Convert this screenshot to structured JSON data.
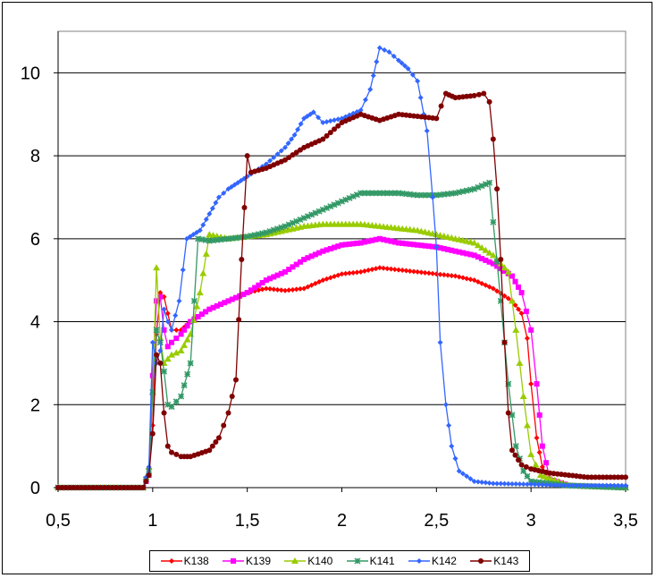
{
  "chart_data": {
    "type": "line",
    "title": "",
    "xlabel": "",
    "ylabel": "",
    "xlim": [
      0.5,
      3.5
    ],
    "ylim": [
      0,
      11
    ],
    "x_ticks": [
      "0,5",
      "1",
      "1,5",
      "2",
      "2,5",
      "3",
      "3,5"
    ],
    "y_ticks": [
      "0",
      "2",
      "4",
      "6",
      "8",
      "10"
    ],
    "grid": "horizontal",
    "legend_position": "bottom",
    "series": [
      {
        "name": "K138",
        "color": "#ff0000",
        "marker": "diamond",
        "points": [
          [
            0.5,
            0
          ],
          [
            0.95,
            0
          ],
          [
            0.98,
            0.3
          ],
          [
            1.0,
            1.5
          ],
          [
            1.02,
            3.7
          ],
          [
            1.04,
            4.7
          ],
          [
            1.06,
            4.6
          ],
          [
            1.08,
            4.2
          ],
          [
            1.1,
            3.8
          ],
          [
            1.15,
            3.8
          ],
          [
            1.2,
            4.0
          ],
          [
            1.3,
            4.3
          ],
          [
            1.4,
            4.5
          ],
          [
            1.5,
            4.7
          ],
          [
            1.6,
            4.8
          ],
          [
            1.7,
            4.75
          ],
          [
            1.8,
            4.8
          ],
          [
            1.9,
            5.0
          ],
          [
            2.0,
            5.15
          ],
          [
            2.1,
            5.2
          ],
          [
            2.2,
            5.3
          ],
          [
            2.3,
            5.25
          ],
          [
            2.4,
            5.2
          ],
          [
            2.5,
            5.15
          ],
          [
            2.6,
            5.1
          ],
          [
            2.7,
            5.0
          ],
          [
            2.8,
            4.8
          ],
          [
            2.9,
            4.5
          ],
          [
            2.95,
            4.2
          ],
          [
            2.98,
            3.6
          ],
          [
            3.0,
            2.5
          ],
          [
            3.03,
            1.2
          ],
          [
            3.06,
            0.5
          ],
          [
            3.1,
            0.2
          ],
          [
            3.2,
            0.05
          ],
          [
            3.5,
            0
          ]
        ]
      },
      {
        "name": "K139",
        "color": "#ff00ff",
        "marker": "square",
        "points": [
          [
            0.5,
            0
          ],
          [
            0.95,
            0
          ],
          [
            0.98,
            0.3
          ],
          [
            1.0,
            2.7
          ],
          [
            1.02,
            4.5
          ],
          [
            1.04,
            4.6
          ],
          [
            1.06,
            3.8
          ],
          [
            1.08,
            3.4
          ],
          [
            1.1,
            3.5
          ],
          [
            1.15,
            3.7
          ],
          [
            1.2,
            4.0
          ],
          [
            1.3,
            4.3
          ],
          [
            1.4,
            4.5
          ],
          [
            1.5,
            4.7
          ],
          [
            1.6,
            5.0
          ],
          [
            1.7,
            5.2
          ],
          [
            1.8,
            5.5
          ],
          [
            1.9,
            5.7
          ],
          [
            2.0,
            5.85
          ],
          [
            2.1,
            5.9
          ],
          [
            2.2,
            6.0
          ],
          [
            2.3,
            5.9
          ],
          [
            2.4,
            5.85
          ],
          [
            2.5,
            5.8
          ],
          [
            2.6,
            5.7
          ],
          [
            2.7,
            5.6
          ],
          [
            2.8,
            5.4
          ],
          [
            2.9,
            5.1
          ],
          [
            2.95,
            4.7
          ],
          [
            3.0,
            3.8
          ],
          [
            3.03,
            2.5
          ],
          [
            3.06,
            1.0
          ],
          [
            3.1,
            0.2
          ],
          [
            3.2,
            0.05
          ],
          [
            3.5,
            0
          ]
        ]
      },
      {
        "name": "K140",
        "color": "#99cc00",
        "marker": "triangle",
        "points": [
          [
            0.5,
            0
          ],
          [
            0.95,
            0
          ],
          [
            0.98,
            0.5
          ],
          [
            1.0,
            2.3
          ],
          [
            1.02,
            5.3
          ],
          [
            1.04,
            3.6
          ],
          [
            1.06,
            3.0
          ],
          [
            1.1,
            3.2
          ],
          [
            1.15,
            3.3
          ],
          [
            1.2,
            3.7
          ],
          [
            1.25,
            4.7
          ],
          [
            1.3,
            6.1
          ],
          [
            1.4,
            6.0
          ],
          [
            1.5,
            6.05
          ],
          [
            1.6,
            6.1
          ],
          [
            1.7,
            6.2
          ],
          [
            1.8,
            6.3
          ],
          [
            1.9,
            6.35
          ],
          [
            2.0,
            6.35
          ],
          [
            2.1,
            6.35
          ],
          [
            2.2,
            6.3
          ],
          [
            2.3,
            6.25
          ],
          [
            2.4,
            6.2
          ],
          [
            2.5,
            6.1
          ],
          [
            2.6,
            6.0
          ],
          [
            2.7,
            5.9
          ],
          [
            2.8,
            5.6
          ],
          [
            2.88,
            5.2
          ],
          [
            2.92,
            3.8
          ],
          [
            2.96,
            2.2
          ],
          [
            3.0,
            0.8
          ],
          [
            3.05,
            0.3
          ],
          [
            3.2,
            0.05
          ],
          [
            3.5,
            0
          ]
        ]
      },
      {
        "name": "K141",
        "color": "#339966",
        "marker": "asterisk",
        "points": [
          [
            0.5,
            0
          ],
          [
            0.95,
            0
          ],
          [
            0.98,
            0.4
          ],
          [
            1.0,
            2.3
          ],
          [
            1.02,
            3.8
          ],
          [
            1.04,
            3.5
          ],
          [
            1.06,
            2.8
          ],
          [
            1.08,
            2.0
          ],
          [
            1.1,
            1.95
          ],
          [
            1.15,
            2.2
          ],
          [
            1.2,
            3.0
          ],
          [
            1.24,
            6.0
          ],
          [
            1.3,
            5.95
          ],
          [
            1.4,
            6.0
          ],
          [
            1.5,
            6.05
          ],
          [
            1.6,
            6.15
          ],
          [
            1.7,
            6.3
          ],
          [
            1.8,
            6.5
          ],
          [
            1.9,
            6.7
          ],
          [
            2.0,
            6.9
          ],
          [
            2.1,
            7.1
          ],
          [
            2.2,
            7.1
          ],
          [
            2.3,
            7.1
          ],
          [
            2.4,
            7.05
          ],
          [
            2.5,
            7.05
          ],
          [
            2.6,
            7.1
          ],
          [
            2.7,
            7.2
          ],
          [
            2.78,
            7.35
          ],
          [
            2.8,
            6.4
          ],
          [
            2.84,
            4.5
          ],
          [
            2.88,
            2.5
          ],
          [
            2.92,
            1.0
          ],
          [
            2.96,
            0.4
          ],
          [
            3.0,
            0.15
          ],
          [
            3.2,
            0.05
          ],
          [
            3.5,
            0
          ]
        ]
      },
      {
        "name": "K142",
        "color": "#3366ff",
        "marker": "diamond",
        "points": [
          [
            0.5,
            0
          ],
          [
            0.95,
            0
          ],
          [
            0.98,
            0.5
          ],
          [
            1.0,
            3.5
          ],
          [
            1.02,
            3.0
          ],
          [
            1.04,
            3.3
          ],
          [
            1.06,
            4.3
          ],
          [
            1.08,
            4.0
          ],
          [
            1.1,
            3.8
          ],
          [
            1.14,
            4.5
          ],
          [
            1.18,
            6.0
          ],
          [
            1.25,
            6.2
          ],
          [
            1.3,
            6.6
          ],
          [
            1.35,
            7.0
          ],
          [
            1.4,
            7.2
          ],
          [
            1.45,
            7.35
          ],
          [
            1.5,
            7.5
          ],
          [
            1.6,
            7.8
          ],
          [
            1.7,
            8.2
          ],
          [
            1.75,
            8.5
          ],
          [
            1.8,
            8.9
          ],
          [
            1.85,
            9.05
          ],
          [
            1.9,
            8.8
          ],
          [
            2.0,
            8.9
          ],
          [
            2.1,
            9.1
          ],
          [
            2.15,
            9.6
          ],
          [
            2.2,
            10.6
          ],
          [
            2.25,
            10.5
          ],
          [
            2.3,
            10.3
          ],
          [
            2.35,
            10.1
          ],
          [
            2.4,
            9.8
          ],
          [
            2.45,
            8.6
          ],
          [
            2.48,
            7.0
          ],
          [
            2.5,
            5.8
          ],
          [
            2.52,
            3.5
          ],
          [
            2.55,
            2.0
          ],
          [
            2.58,
            1.0
          ],
          [
            2.62,
            0.4
          ],
          [
            2.7,
            0.15
          ],
          [
            2.8,
            0.1
          ],
          [
            3.0,
            0.08
          ],
          [
            3.2,
            0.05
          ],
          [
            3.5,
            0.05
          ]
        ]
      },
      {
        "name": "K143",
        "color": "#800000",
        "marker": "circle",
        "points": [
          [
            0.5,
            0
          ],
          [
            0.95,
            0
          ],
          [
            0.98,
            0.3
          ],
          [
            1.0,
            1.3
          ],
          [
            1.02,
            3.2
          ],
          [
            1.04,
            3.0
          ],
          [
            1.06,
            1.8
          ],
          [
            1.08,
            1.0
          ],
          [
            1.1,
            0.85
          ],
          [
            1.15,
            0.75
          ],
          [
            1.2,
            0.75
          ],
          [
            1.3,
            0.9
          ],
          [
            1.35,
            1.2
          ],
          [
            1.4,
            1.8
          ],
          [
            1.44,
            2.6
          ],
          [
            1.47,
            5.5
          ],
          [
            1.5,
            8.0
          ],
          [
            1.52,
            7.6
          ],
          [
            1.6,
            7.7
          ],
          [
            1.7,
            7.9
          ],
          [
            1.8,
            8.2
          ],
          [
            1.9,
            8.4
          ],
          [
            2.0,
            8.8
          ],
          [
            2.1,
            9.0
          ],
          [
            2.2,
            8.85
          ],
          [
            2.3,
            9.0
          ],
          [
            2.4,
            8.95
          ],
          [
            2.5,
            8.9
          ],
          [
            2.55,
            9.5
          ],
          [
            2.6,
            9.4
          ],
          [
            2.7,
            9.45
          ],
          [
            2.75,
            9.5
          ],
          [
            2.78,
            9.3
          ],
          [
            2.8,
            8.4
          ],
          [
            2.82,
            7.2
          ],
          [
            2.84,
            5.5
          ],
          [
            2.86,
            3.5
          ],
          [
            2.88,
            1.8
          ],
          [
            2.9,
            0.9
          ],
          [
            2.95,
            0.55
          ],
          [
            3.0,
            0.45
          ],
          [
            3.1,
            0.35
          ],
          [
            3.2,
            0.3
          ],
          [
            3.3,
            0.25
          ],
          [
            3.4,
            0.25
          ],
          [
            3.5,
            0.25
          ]
        ]
      }
    ]
  }
}
